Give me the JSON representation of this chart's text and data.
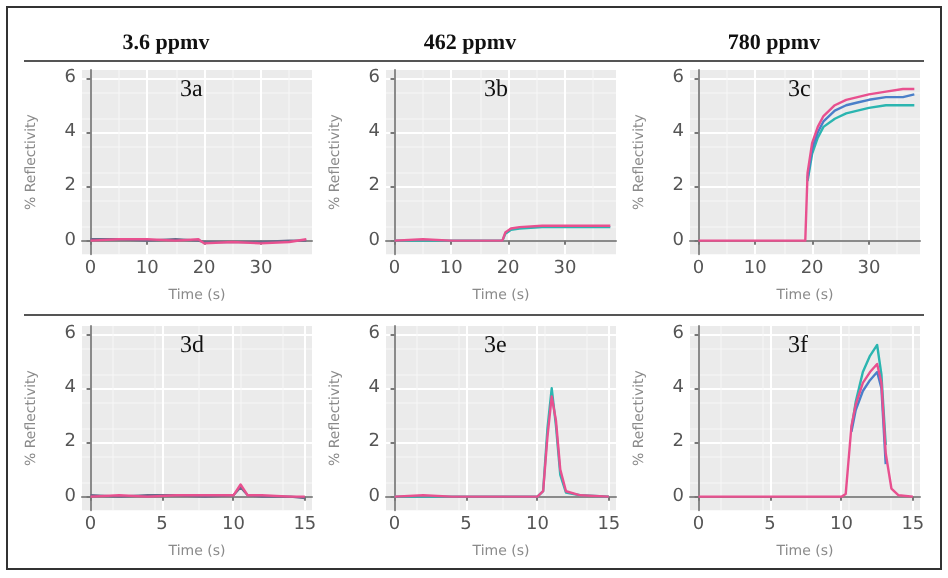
{
  "chart_data": [
    {
      "type": "line",
      "title": "3.6 ppmv",
      "xlabel": "Time (s)",
      "ylabel": "% Reflectivity",
      "annotations": [
        "3a"
      ],
      "xlim": [
        -1.5,
        39
      ],
      "ylim": [
        -0.5,
        6.3
      ],
      "xticks": [
        0,
        10,
        20,
        30
      ],
      "yticks": [
        0,
        2,
        4,
        6
      ],
      "grid": true,
      "line_style": "solid",
      "series": [
        {
          "color": "#6a6a8a",
          "x": [
            0,
            5,
            10,
            15,
            19,
            20,
            25,
            30,
            35,
            38
          ],
          "values": [
            0.05,
            0.05,
            0.0,
            0.05,
            0.0,
            -0.05,
            -0.05,
            -0.05,
            0.0,
            0.0
          ]
        },
        {
          "color": "#e8508f",
          "x": [
            0,
            5,
            10,
            15,
            19,
            20,
            25,
            30,
            35,
            38
          ],
          "values": [
            0.0,
            0.05,
            0.05,
            0.0,
            0.05,
            -0.1,
            -0.05,
            -0.1,
            -0.05,
            0.05
          ]
        }
      ]
    },
    {
      "type": "line",
      "title": "462 ppmv",
      "xlabel": "Time (s)",
      "ylabel": "% Reflectivity",
      "annotations": [
        "3b"
      ],
      "xlim": [
        -1.5,
        39
      ],
      "ylim": [
        -0.5,
        6.3
      ],
      "xticks": [
        0,
        10,
        20,
        30
      ],
      "yticks": [
        0,
        2,
        4,
        6
      ],
      "grid": true,
      "line_style": "solid",
      "series": [
        {
          "color": "#2bb5b0",
          "x": [
            0,
            5,
            10,
            15,
            19,
            19.5,
            20.5,
            22,
            26,
            30,
            35,
            38
          ],
          "values": [
            0.0,
            0.0,
            0.0,
            0.0,
            0.0,
            0.25,
            0.4,
            0.45,
            0.5,
            0.5,
            0.5,
            0.5
          ]
        },
        {
          "color": "#e8508f",
          "x": [
            0,
            5,
            10,
            15,
            19,
            19.5,
            20.5,
            22,
            26,
            30,
            35,
            38
          ],
          "values": [
            0.0,
            0.05,
            0.0,
            0.0,
            0.0,
            0.3,
            0.45,
            0.5,
            0.55,
            0.55,
            0.55,
            0.55
          ]
        }
      ]
    },
    {
      "type": "line",
      "title": "780 ppmv",
      "xlabel": "Time (s)",
      "ylabel": "% Reflectivity",
      "annotations": [
        "3c"
      ],
      "xlim": [
        -1.5,
        39
      ],
      "ylim": [
        -0.5,
        6.3
      ],
      "xticks": [
        0,
        10,
        20,
        30
      ],
      "yticks": [
        0,
        2,
        4,
        6
      ],
      "grid": true,
      "line_style": "solid",
      "series": [
        {
          "color": "#2bb5b0",
          "x": [
            19.2,
            20,
            21,
            22,
            24,
            26,
            28,
            30,
            33,
            36,
            38
          ],
          "values": [
            2.2,
            3.2,
            3.8,
            4.2,
            4.5,
            4.7,
            4.8,
            4.9,
            5.0,
            5.0,
            5.0
          ]
        },
        {
          "color": "#4a7fc9",
          "x": [
            19.2,
            20,
            21,
            22,
            24,
            26,
            28,
            30,
            33,
            36,
            38
          ],
          "values": [
            2.3,
            3.4,
            4.0,
            4.4,
            4.8,
            5.0,
            5.1,
            5.2,
            5.3,
            5.3,
            5.4
          ]
        },
        {
          "color": "#e8508f",
          "x": [
            0,
            5,
            10,
            15,
            18.8,
            19.2,
            20,
            21,
            22,
            24,
            26,
            28,
            30,
            33,
            36,
            38
          ],
          "values": [
            0.0,
            0.0,
            0.0,
            0.0,
            0.0,
            2.5,
            3.6,
            4.2,
            4.6,
            5.0,
            5.2,
            5.3,
            5.4,
            5.5,
            5.6,
            5.6
          ]
        }
      ]
    },
    {
      "type": "line",
      "xlabel": "Time (s)",
      "ylabel": "% Reflectivity",
      "annotations": [
        "3d"
      ],
      "xlim": [
        -0.6,
        15.5
      ],
      "ylim": [
        -0.5,
        6.3
      ],
      "xticks": [
        0,
        5,
        10,
        15
      ],
      "yticks": [
        0,
        2,
        4,
        6
      ],
      "grid": true,
      "line_style": "solid",
      "series": [
        {
          "color": "#6a6a8a",
          "x": [
            0,
            2,
            4,
            6,
            8,
            10,
            10.5,
            11,
            12,
            14,
            15
          ],
          "values": [
            0.05,
            0.0,
            0.05,
            0.05,
            0.0,
            0.05,
            0.35,
            0.05,
            0.0,
            0.0,
            -0.05
          ]
        },
        {
          "color": "#e8508f",
          "x": [
            0,
            2,
            4,
            6,
            8,
            10,
            10.5,
            11,
            12,
            14,
            15
          ],
          "values": [
            0.0,
            0.05,
            0.0,
            0.05,
            0.05,
            0.05,
            0.45,
            0.05,
            0.05,
            0.0,
            0.0
          ]
        }
      ]
    },
    {
      "type": "line",
      "xlabel": "Time (s)",
      "ylabel": "% Reflectivity",
      "annotations": [
        "3e"
      ],
      "xlim": [
        -0.6,
        15.5
      ],
      "ylim": [
        -0.5,
        6.3
      ],
      "xticks": [
        0,
        5,
        10,
        15
      ],
      "yticks": [
        0,
        2,
        4,
        6
      ],
      "grid": true,
      "line_style": "solid",
      "series": [
        {
          "color": "#2bb5b0",
          "x": [
            0,
            2,
            4,
            6,
            8,
            10,
            10.4,
            10.7,
            11,
            11.3,
            11.6,
            12,
            13,
            15
          ],
          "values": [
            0.0,
            0.0,
            0.0,
            0.0,
            0.0,
            0.0,
            0.2,
            2.5,
            4.0,
            2.6,
            0.8,
            0.15,
            0.05,
            0.0
          ]
        },
        {
          "color": "#e8508f",
          "x": [
            0,
            2,
            4,
            6,
            8,
            10,
            10.4,
            10.7,
            11,
            11.3,
            11.6,
            12,
            13,
            15
          ],
          "values": [
            0.0,
            0.05,
            0.0,
            0.0,
            0.0,
            0.0,
            0.2,
            2.2,
            3.7,
            2.8,
            1.0,
            0.2,
            0.05,
            0.0
          ]
        }
      ]
    },
    {
      "type": "line",
      "xlabel": "Time (s)",
      "ylabel": "% Reflectivity",
      "annotations": [
        "3f"
      ],
      "xlim": [
        -0.6,
        15.5
      ],
      "ylim": [
        -0.5,
        6.3
      ],
      "xticks": [
        0,
        5,
        10,
        15
      ],
      "yticks": [
        0,
        2,
        4,
        6
      ],
      "grid": true,
      "line_style": "solid",
      "series": [
        {
          "color": "#2bb5b0",
          "x": [
            10.7,
            11,
            11.5,
            12,
            12.5,
            12.8,
            13.1
          ],
          "values": [
            2.5,
            3.5,
            4.6,
            5.2,
            5.6,
            4.5,
            1.9
          ]
        },
        {
          "color": "#4a7fc9",
          "x": [
            10.7,
            11,
            11.5,
            12,
            12.5,
            12.8,
            13.1
          ],
          "values": [
            2.4,
            3.2,
            3.9,
            4.3,
            4.6,
            4.0,
            1.2
          ]
        },
        {
          "color": "#e8508f",
          "x": [
            0,
            2,
            4,
            6,
            8,
            10,
            10.3,
            10.7,
            11,
            11.5,
            12,
            12.5,
            12.8,
            13.1,
            13.5,
            14,
            15
          ],
          "values": [
            0.0,
            0.0,
            0.0,
            0.0,
            0.0,
            0.0,
            0.1,
            2.6,
            3.4,
            4.2,
            4.6,
            4.9,
            4.2,
            1.6,
            0.3,
            0.05,
            0.0
          ]
        }
      ]
    }
  ]
}
